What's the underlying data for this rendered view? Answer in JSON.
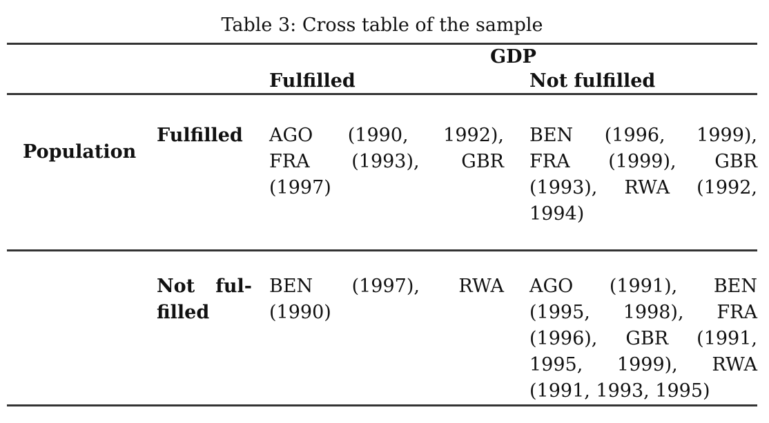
{
  "caption": "Table 3: Cross table of the sample",
  "table": {
    "col_group_header": "GDP",
    "row_group_header": "Population",
    "column_headers": [
      "Fulfilled",
      "Not fulfilled"
    ],
    "rows": [
      {
        "label": "Fulfilled",
        "label_lines": [
          "Fulfilled"
        ],
        "cells": [
          {
            "text": "AGO (1990, 1992), FRA (1993), GBR (1997)",
            "lines": [
              "AGO (1990, 1992),",
              "FRA (1993), GBR",
              "(1997)"
            ]
          },
          {
            "text": "BEN (1996, 1999), FRA (1999), GBR (1993), RWA (1992, 1994)",
            "lines": [
              "BEN (1996, 1999),",
              "FRA (1999), GBR",
              "(1993), RWA (1992,",
              "1994)"
            ]
          }
        ]
      },
      {
        "label": "Not fulfilled",
        "label_lines": [
          "Not ful-",
          "filled"
        ],
        "cells": [
          {
            "text": "BEN (1997), RWA (1990)",
            "lines": [
              "BEN (1997), RWA",
              "(1990)"
            ]
          },
          {
            "text": "AGO (1991), BEN (1995, 1998), FRA (1996), GBR (1991, 1995, 1999), RWA (1991, 1993, 1995)",
            "lines": [
              "AGO (1991), BEN",
              "(1995, 1998), FRA",
              "(1996), GBR (1991,",
              "1995, 1999), RWA",
              "(1991, 1993, 1995)"
            ]
          }
        ]
      }
    ]
  },
  "colors": {
    "background": "#ffffff",
    "text": "#111111",
    "rule": "#333333"
  }
}
